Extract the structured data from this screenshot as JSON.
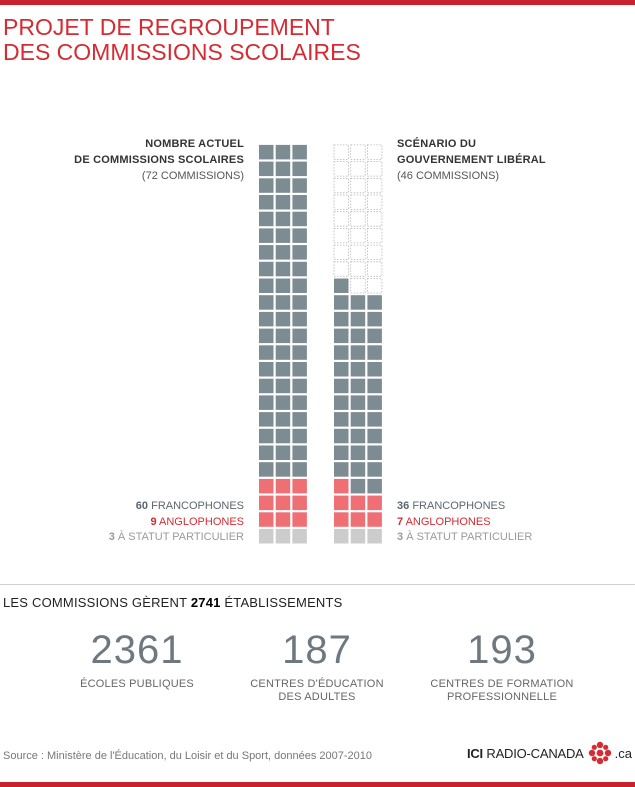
{
  "title": {
    "line1": "PROJET DE REGROUPEMENT",
    "line2": "DES COMMISSIONS SCOLAIRES"
  },
  "labels": {
    "left": {
      "line1": "NOMBRE ACTUEL",
      "line2": "DE COMMISSIONS SCOLAIRES",
      "line3": "(72 COMMISSIONS)"
    },
    "right": {
      "line1": "SCÉNARIO DU",
      "line2": "GOUVERNEMENT LIBÉRAL",
      "line3": "(46 COMMISSIONS)"
    }
  },
  "colors": {
    "franco": "#7d8b93",
    "anglo": "#ee6f74",
    "special": "#cccccc",
    "empty_outline": "#b5b5b5",
    "accent": "#d52b32"
  },
  "chart_data": [
    {
      "type": "waffle",
      "name": "NOMBRE ACTUEL DE COMMISSIONS SCOLAIRES",
      "columns": 3,
      "total": 72,
      "series": [
        {
          "name": "FRANCOPHONES",
          "value": 60
        },
        {
          "name": "ANGLOPHONES",
          "value": 9
        },
        {
          "name": "À STATUT PARTICULIER",
          "value": 3
        }
      ]
    },
    {
      "type": "waffle",
      "name": "SCÉNARIO DU GOUVERNEMENT LIBÉRAL",
      "columns": 3,
      "total": 46,
      "series": [
        {
          "name": "FRANCOPHONES",
          "value": 36
        },
        {
          "name": "ANGLOPHONES",
          "value": 7
        },
        {
          "name": "À STATUT PARTICULIER",
          "value": 3
        }
      ]
    }
  ],
  "legend": {
    "left": [
      {
        "num": "60",
        "text": "FRANCOPHONES"
      },
      {
        "num": "9",
        "text": "ANGLOPHONES"
      },
      {
        "num": "3",
        "text": "À STATUT PARTICULIER"
      }
    ],
    "right": [
      {
        "num": "36",
        "text": "FRANCOPHONES"
      },
      {
        "num": "7",
        "text": "ANGLOPHONES"
      },
      {
        "num": "3",
        "text": "À STATUT PARTICULIER"
      }
    ]
  },
  "manage": {
    "prefix": "LES COMMISSIONS GÈRENT",
    "total": "2741",
    "suffix": "ÉTABLISSEMENTS"
  },
  "stats": [
    {
      "value": "2361",
      "line1": "ÉCOLES PUBLIQUES",
      "line2": ""
    },
    {
      "value": "187",
      "line1": "CENTRES D'ÉDUCATION",
      "line2": "DES ADULTES"
    },
    {
      "value": "193",
      "line1": "CENTRES DE FORMATION",
      "line2": "PROFESSIONNELLE"
    }
  ],
  "source": "Source : Ministère de l'Éducation, du Loisir et du Sport, données 2007-2010",
  "logo": {
    "ici": "ICI",
    "brand": "RADIO-CANADA",
    "domain": ".ca",
    "icon": "cbc-gem-icon"
  }
}
